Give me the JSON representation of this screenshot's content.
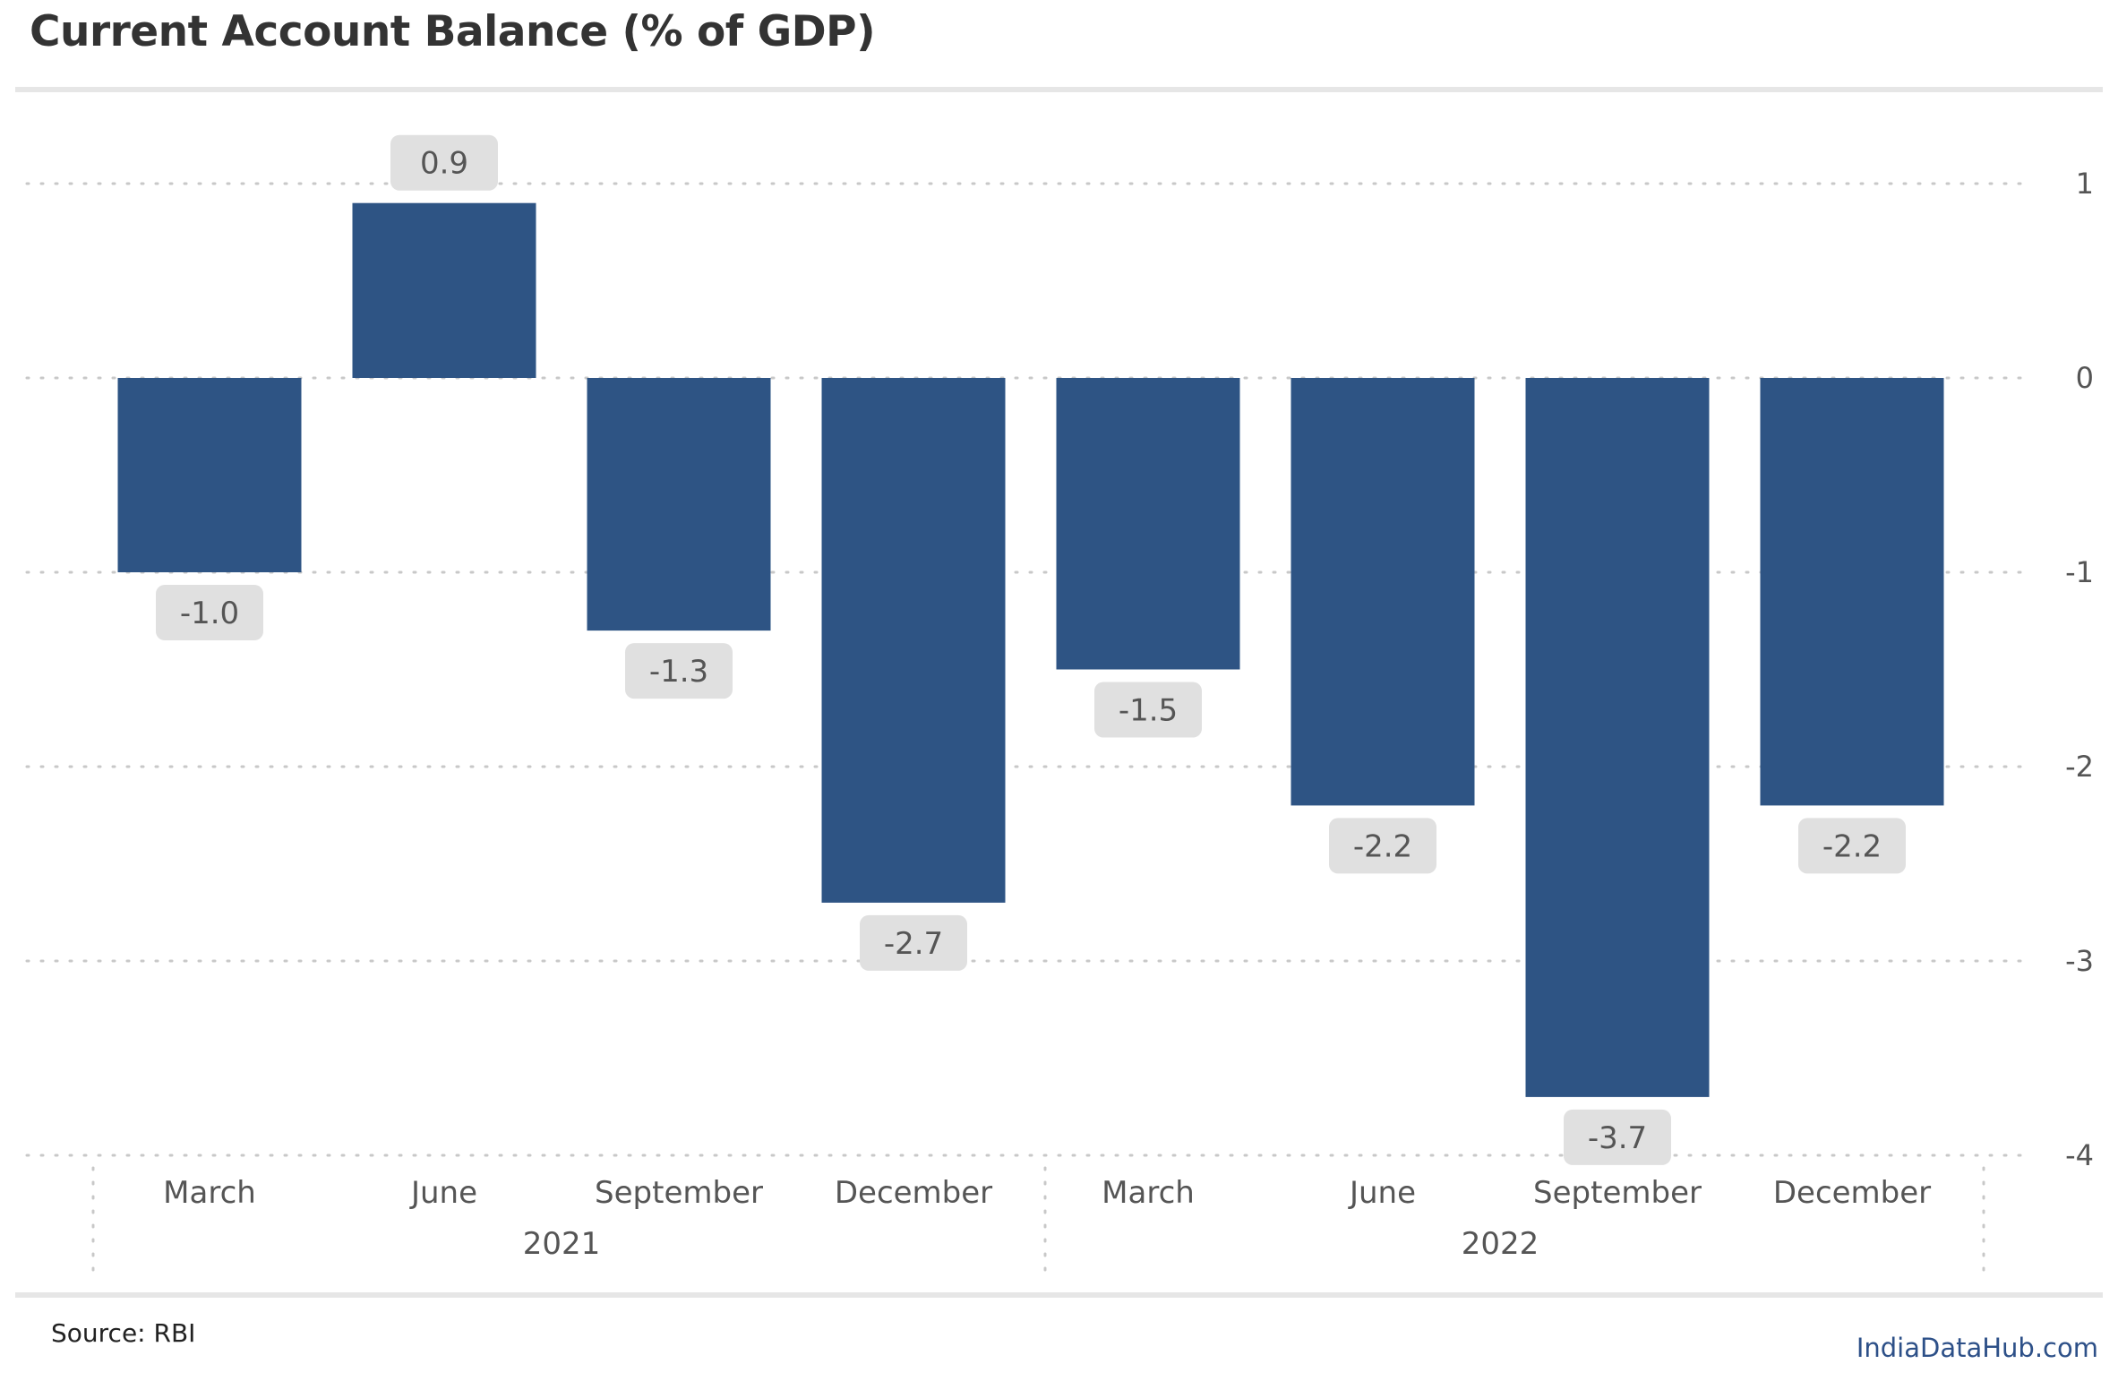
{
  "chart_data": {
    "type": "bar",
    "title": "Current Account Balance (% of GDP)",
    "xlabel": "",
    "ylabel": "",
    "categories": [
      "March",
      "June",
      "September",
      "December",
      "March",
      "June",
      "September",
      "December"
    ],
    "groups": [
      {
        "label": "2021",
        "categories": [
          "March",
          "June",
          "September",
          "December"
        ]
      },
      {
        "label": "2022",
        "categories": [
          "March",
          "June",
          "September",
          "December"
        ]
      }
    ],
    "values": [
      -1.0,
      0.9,
      -1.3,
      -2.7,
      -1.5,
      -2.2,
      -3.7,
      -2.2
    ],
    "data_labels": [
      "-1.0",
      "0.9",
      "-1.3",
      "-2.7",
      "-1.5",
      "-2.2",
      "-3.7",
      "-2.2"
    ],
    "ylim": [
      -4,
      1
    ],
    "yticks": [
      1,
      0,
      -1,
      -2,
      -3,
      -4
    ],
    "ytick_labels": [
      "1",
      "0",
      "-1",
      "-2",
      "-3",
      "-4"
    ],
    "y_axis_side": "right",
    "grid": "dotted-horizontal",
    "bar_color": "#2e5484",
    "label_bg_color": "#e0e0e0",
    "label_text_color": "#555555"
  },
  "footer": {
    "source": "Source: RBI",
    "brand": "IndiaDataHub.com"
  }
}
